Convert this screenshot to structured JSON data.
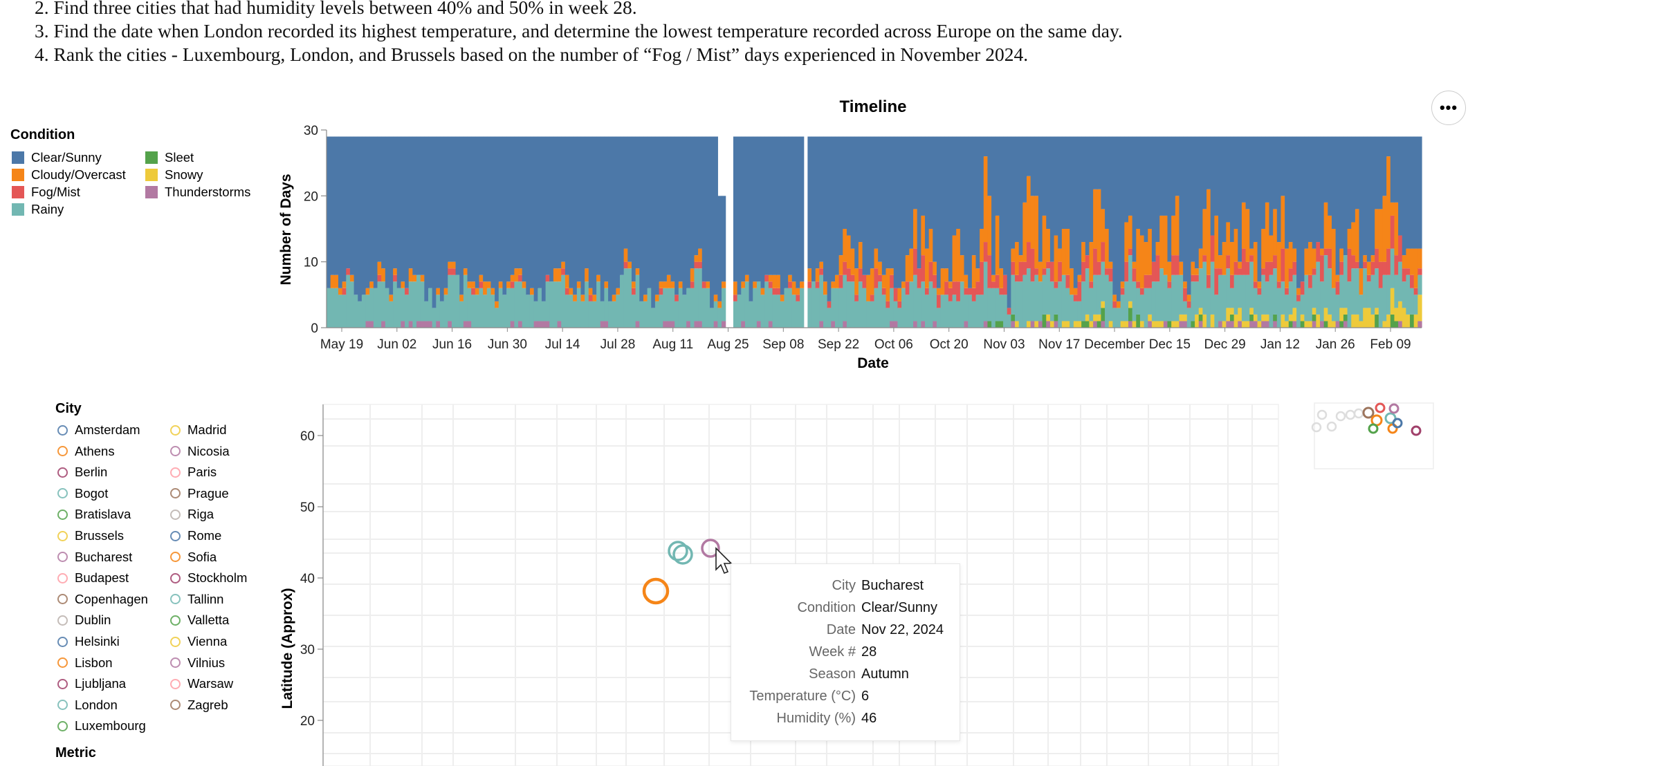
{
  "questions": [
    "2. Find three cities that had humidity levels between 40% and 50% in week 28.",
    "3. Find the date when London recorded its highest temperature, and determine the lowest temperature recorded across Europe on the same day.",
    "4. Rank the cities - Luxembourg, London, and Brussels based on the number of “Fog / Mist” days experienced in November 2024."
  ],
  "menu_button_label": "•••",
  "condition_legend": {
    "title": "Condition",
    "items": [
      {
        "label": "Clear/Sunny",
        "color": "#4c78a8"
      },
      {
        "label": "Cloudy/Overcast",
        "color": "#f58518"
      },
      {
        "label": "Fog/Mist",
        "color": "#e45756"
      },
      {
        "label": "Rainy",
        "color": "#72b7b2"
      },
      {
        "label": "Sleet",
        "color": "#54a24b"
      },
      {
        "label": "Snowy",
        "color": "#eeca3b"
      },
      {
        "label": "Thunderstorms",
        "color": "#b279a2"
      }
    ]
  },
  "city_legend": {
    "title": "City",
    "items": [
      {
        "label": "Amsterdam",
        "color": "#4c78a8"
      },
      {
        "label": "Athens",
        "color": "#f58518"
      },
      {
        "label": "Berlin",
        "color": "#a0406a"
      },
      {
        "label": "Bogot",
        "color": "#72b7b2"
      },
      {
        "label": "Bratislava",
        "color": "#54a24b"
      },
      {
        "label": "Brussels",
        "color": "#eeca3b"
      },
      {
        "label": "Bucharest",
        "color": "#b279a2"
      },
      {
        "label": "Budapest",
        "color": "#ff9da6"
      },
      {
        "label": "Copenhagen",
        "color": "#9d755d"
      },
      {
        "label": "Dublin",
        "color": "#bab0ac"
      },
      {
        "label": "Helsinki",
        "color": "#4c78a8"
      },
      {
        "label": "Lisbon",
        "color": "#f58518"
      },
      {
        "label": "Ljubljana",
        "color": "#a0406a"
      },
      {
        "label": "London",
        "color": "#72b7b2"
      },
      {
        "label": "Luxembourg",
        "color": "#54a24b"
      },
      {
        "label": "Madrid",
        "color": "#eeca3b"
      },
      {
        "label": "Nicosia",
        "color": "#b279a2"
      },
      {
        "label": "Paris",
        "color": "#ff9da6"
      },
      {
        "label": "Prague",
        "color": "#9d755d"
      },
      {
        "label": "Riga",
        "color": "#bab0ac"
      },
      {
        "label": "Rome",
        "color": "#4c78a8"
      },
      {
        "label": "Sofia",
        "color": "#f58518"
      },
      {
        "label": "Stockholm",
        "color": "#a0406a"
      },
      {
        "label": "Tallinn",
        "color": "#72b7b2"
      },
      {
        "label": "Valletta",
        "color": "#54a24b"
      },
      {
        "label": "Vienna",
        "color": "#eeca3b"
      },
      {
        "label": "Vilnius",
        "color": "#b279a2"
      },
      {
        "label": "Warsaw",
        "color": "#ff9da6"
      },
      {
        "label": "Zagreb",
        "color": "#9d755d"
      }
    ]
  },
  "metric_legend": {
    "title": "Metric"
  },
  "tooltip": [
    {
      "key": "City",
      "value": "Bucharest"
    },
    {
      "key": "Condition",
      "value": "Clear/Sunny"
    },
    {
      "key": "Date",
      "value": "Nov 22, 2024"
    },
    {
      "key": "Week #",
      "value": "28"
    },
    {
      "key": "Season",
      "value": "Autumn"
    },
    {
      "key": "Temperature (°C)",
      "value": "6"
    },
    {
      "key": "Humidity (%)",
      "value": "46"
    }
  ],
  "chart_data": [
    {
      "type": "area",
      "title": "Timeline",
      "xlabel": "Date",
      "ylabel": "Number of Days",
      "ylim": [
        0,
        30
      ],
      "yticks": [
        0,
        10,
        20,
        30
      ],
      "x_ticks": [
        "May 19",
        "Jun 02",
        "Jun 16",
        "Jun 30",
        "Jul 14",
        "Jul 28",
        "Aug 11",
        "Aug 25",
        "Sep 08",
        "Sep 22",
        "Oct 06",
        "Oct 20",
        "Nov 03",
        "Nov 17",
        "December",
        "Dec 15",
        "Dec 29",
        "Jan 12",
        "Jan 26",
        "Feb 09"
      ],
      "total_per_day": 29,
      "stacked_series": [
        {
          "name": "Thunderstorms",
          "color": "#b279a2",
          "approx_range": [
            0,
            2
          ]
        },
        {
          "name": "Sleet",
          "color": "#54a24b",
          "approx_range": [
            0,
            2
          ]
        },
        {
          "name": "Snowy",
          "color": "#eeca3b",
          "approx_range": [
            0,
            5
          ]
        },
        {
          "name": "Rainy",
          "color": "#72b7b2",
          "approx_range": [
            2,
            9
          ]
        },
        {
          "name": "Fog/Mist",
          "color": "#e45756",
          "approx_range": [
            0,
            6
          ]
        },
        {
          "name": "Cloudy/Overcast",
          "color": "#f58518",
          "approx_range": [
            0,
            12
          ]
        },
        {
          "name": "Clear/Sunny",
          "color": "#4c78a8",
          "approx_range": [
            7,
            29
          ]
        }
      ]
    },
    {
      "type": "scatter",
      "xlabel": "",
      "ylabel": "Latitude (Approx)",
      "yticks": [
        20,
        30,
        40,
        50,
        60
      ],
      "ylim": [
        15,
        65
      ],
      "points": [
        {
          "city": "London",
          "y": 43
        },
        {
          "city": "Bogot",
          "y": 44
        },
        {
          "city": "Bucharest",
          "y": 44.5
        },
        {
          "city": "Athens",
          "y": 38
        }
      ]
    }
  ]
}
